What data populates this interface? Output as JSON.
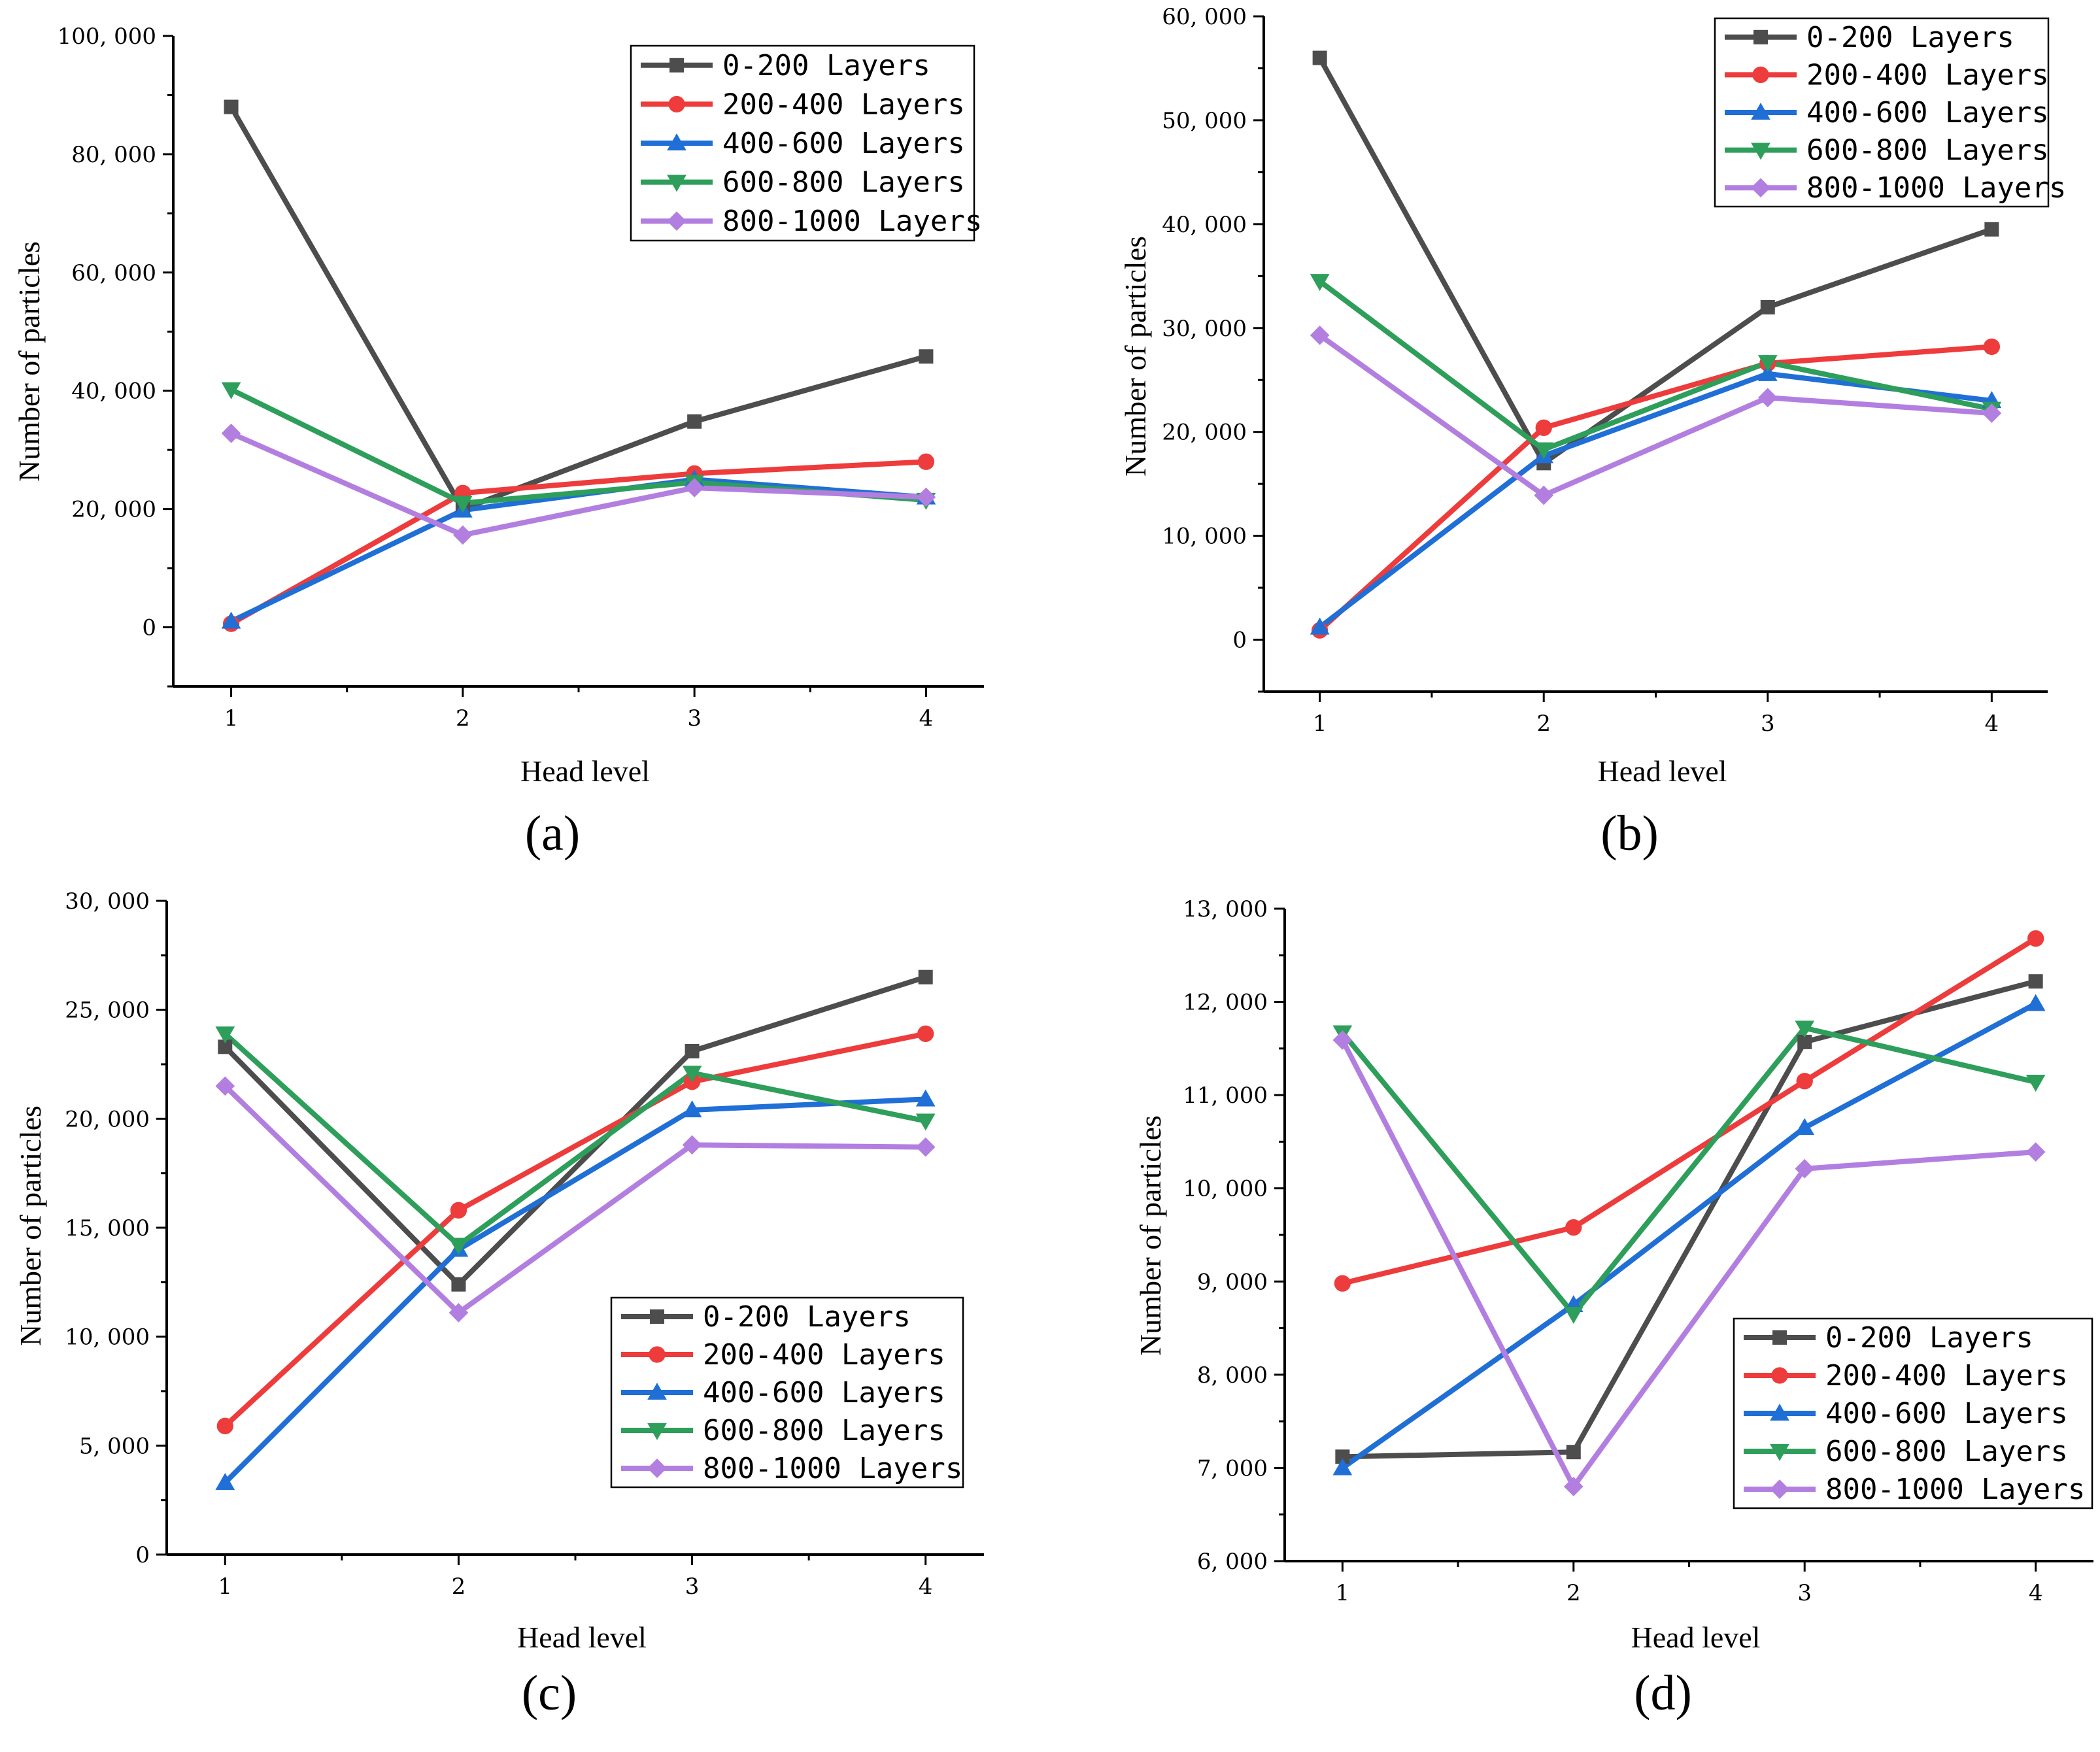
{
  "panels": [
    {
      "panel_label": "(a)",
      "chart_data": {
        "type": "line",
        "xlabel": "Head level",
        "ylabel": "Number of particles",
        "x": [
          1,
          2,
          3,
          4
        ],
        "x_ticks": [
          "1",
          "2",
          "3",
          "4"
        ],
        "xlim": [
          0.75,
          4.25
        ],
        "ylim": [
          -10000,
          100000
        ],
        "y_ticks": [
          0,
          20000,
          40000,
          60000,
          80000,
          100000
        ],
        "y_tick_labels": [
          "0",
          "20, 000",
          "40, 000",
          "60, 000",
          "80, 000",
          "100, 000"
        ],
        "legend_position": "top-right",
        "grid": false,
        "series": [
          {
            "name": "0-200  Layers",
            "color": "#4d4d4d",
            "marker": "square",
            "values": [
              88000,
              20000,
              34800,
              45800
            ]
          },
          {
            "name": "200-400  Layers",
            "color": "#ee3b3b",
            "marker": "circle",
            "values": [
              600,
              22700,
              26000,
              28000
            ]
          },
          {
            "name": "400-600  Layers",
            "color": "#1f6fd6",
            "marker": "triangle-up",
            "values": [
              1000,
              19800,
              25000,
              22000
            ]
          },
          {
            "name": "600-800  Layers",
            "color": "#2e9e5b",
            "marker": "triangle-down",
            "values": [
              40200,
              21000,
              24500,
              21500
            ]
          },
          {
            "name": "800-1000  Layers",
            "color": "#b27fe0",
            "marker": "diamond",
            "values": [
              32800,
              15600,
              23600,
              22000
            ]
          }
        ]
      }
    },
    {
      "panel_label": "(b)",
      "chart_data": {
        "type": "line",
        "xlabel": "Head level",
        "ylabel": "Number of particles",
        "x": [
          1,
          2,
          3,
          4
        ],
        "x_ticks": [
          "1",
          "2",
          "3",
          "4"
        ],
        "xlim": [
          0.75,
          4.25
        ],
        "ylim": [
          -5000,
          60000
        ],
        "y_ticks": [
          0,
          10000,
          20000,
          30000,
          40000,
          50000,
          60000
        ],
        "y_tick_labels": [
          "0",
          "10, 000",
          "20, 000",
          "30, 000",
          "40, 000",
          "50, 000",
          "60, 000"
        ],
        "legend_position": "top-right",
        "grid": false,
        "series": [
          {
            "name": "0-200  Layers",
            "color": "#4d4d4d",
            "marker": "square",
            "values": [
              56000,
              17000,
              32000,
              39500
            ]
          },
          {
            "name": "200-400  Layers",
            "color": "#ee3b3b",
            "marker": "circle",
            "values": [
              900,
              20400,
              26600,
              28200
            ]
          },
          {
            "name": "400-600  Layers",
            "color": "#1f6fd6",
            "marker": "triangle-up",
            "values": [
              1200,
              17700,
              25600,
              23000
            ]
          },
          {
            "name": "600-800  Layers",
            "color": "#2e9e5b",
            "marker": "triangle-down",
            "values": [
              34500,
              18300,
              26700,
              22200
            ]
          },
          {
            "name": "800-1000  Layers",
            "color": "#b27fe0",
            "marker": "diamond",
            "values": [
              29300,
              13900,
              23300,
              21800
            ]
          }
        ]
      }
    },
    {
      "panel_label": "(c)",
      "chart_data": {
        "type": "line",
        "xlabel": "Head level",
        "ylabel": "Number of particles",
        "x": [
          1,
          2,
          3,
          4
        ],
        "x_ticks": [
          "1",
          "2",
          "3",
          "4"
        ],
        "xlim": [
          0.75,
          4.25
        ],
        "ylim": [
          0,
          30000
        ],
        "y_ticks": [
          0,
          5000,
          10000,
          15000,
          20000,
          25000,
          30000
        ],
        "y_tick_labels": [
          "0",
          "5, 000",
          "10, 000",
          "15, 000",
          "20, 000",
          "25, 000",
          "30, 000"
        ],
        "legend_position": "lower-right",
        "grid": false,
        "series": [
          {
            "name": "0-200  Layers",
            "color": "#4d4d4d",
            "marker": "square",
            "values": [
              23300,
              12400,
              23100,
              26500
            ]
          },
          {
            "name": "200-400  Layers",
            "color": "#ee3b3b",
            "marker": "circle",
            "values": [
              5900,
              15800,
              21700,
              23900
            ]
          },
          {
            "name": "400-600  Layers",
            "color": "#1f6fd6",
            "marker": "triangle-up",
            "values": [
              3300,
              14000,
              20400,
              20900
            ]
          },
          {
            "name": "600-800  Layers",
            "color": "#2e9e5b",
            "marker": "triangle-down",
            "values": [
              23900,
              14200,
              22100,
              19900
            ]
          },
          {
            "name": "800-1000  Layers",
            "color": "#b27fe0",
            "marker": "diamond",
            "values": [
              21500,
              11100,
              18800,
              18700
            ]
          }
        ]
      }
    },
    {
      "panel_label": "(d)",
      "chart_data": {
        "type": "line",
        "xlabel": "Head level",
        "ylabel": "Number of particles",
        "x": [
          1,
          2,
          3,
          4
        ],
        "x_ticks": [
          "1",
          "2",
          "3",
          "4"
        ],
        "xlim": [
          0.75,
          4.25
        ],
        "ylim": [
          6000,
          13000
        ],
        "y_ticks": [
          6000,
          7000,
          8000,
          9000,
          10000,
          11000,
          12000,
          13000
        ],
        "y_tick_labels": [
          "6, 000",
          "7, 000",
          "8, 000",
          "9, 000",
          "10, 000",
          "11, 000",
          "12, 000",
          "13, 000"
        ],
        "legend_position": "lower-right",
        "grid": false,
        "series": [
          {
            "name": "0-200  Layers",
            "color": "#4d4d4d",
            "marker": "square",
            "values": [
              7120,
              7170,
              11570,
              12220
            ]
          },
          {
            "name": "200-400  Layers",
            "color": "#ee3b3b",
            "marker": "circle",
            "values": [
              8980,
              9580,
              11150,
              12680
            ]
          },
          {
            "name": "400-600  Layers",
            "color": "#1f6fd6",
            "marker": "triangle-up",
            "values": [
              7000,
              8750,
              10650,
              11980
            ]
          },
          {
            "name": "600-800  Layers",
            "color": "#2e9e5b",
            "marker": "triangle-down",
            "values": [
              11670,
              8650,
              11720,
              11140
            ]
          },
          {
            "name": "800-1000  Layers",
            "color": "#b27fe0",
            "marker": "diamond",
            "values": [
              11590,
              6800,
              10210,
              10390
            ]
          }
        ]
      }
    }
  ]
}
